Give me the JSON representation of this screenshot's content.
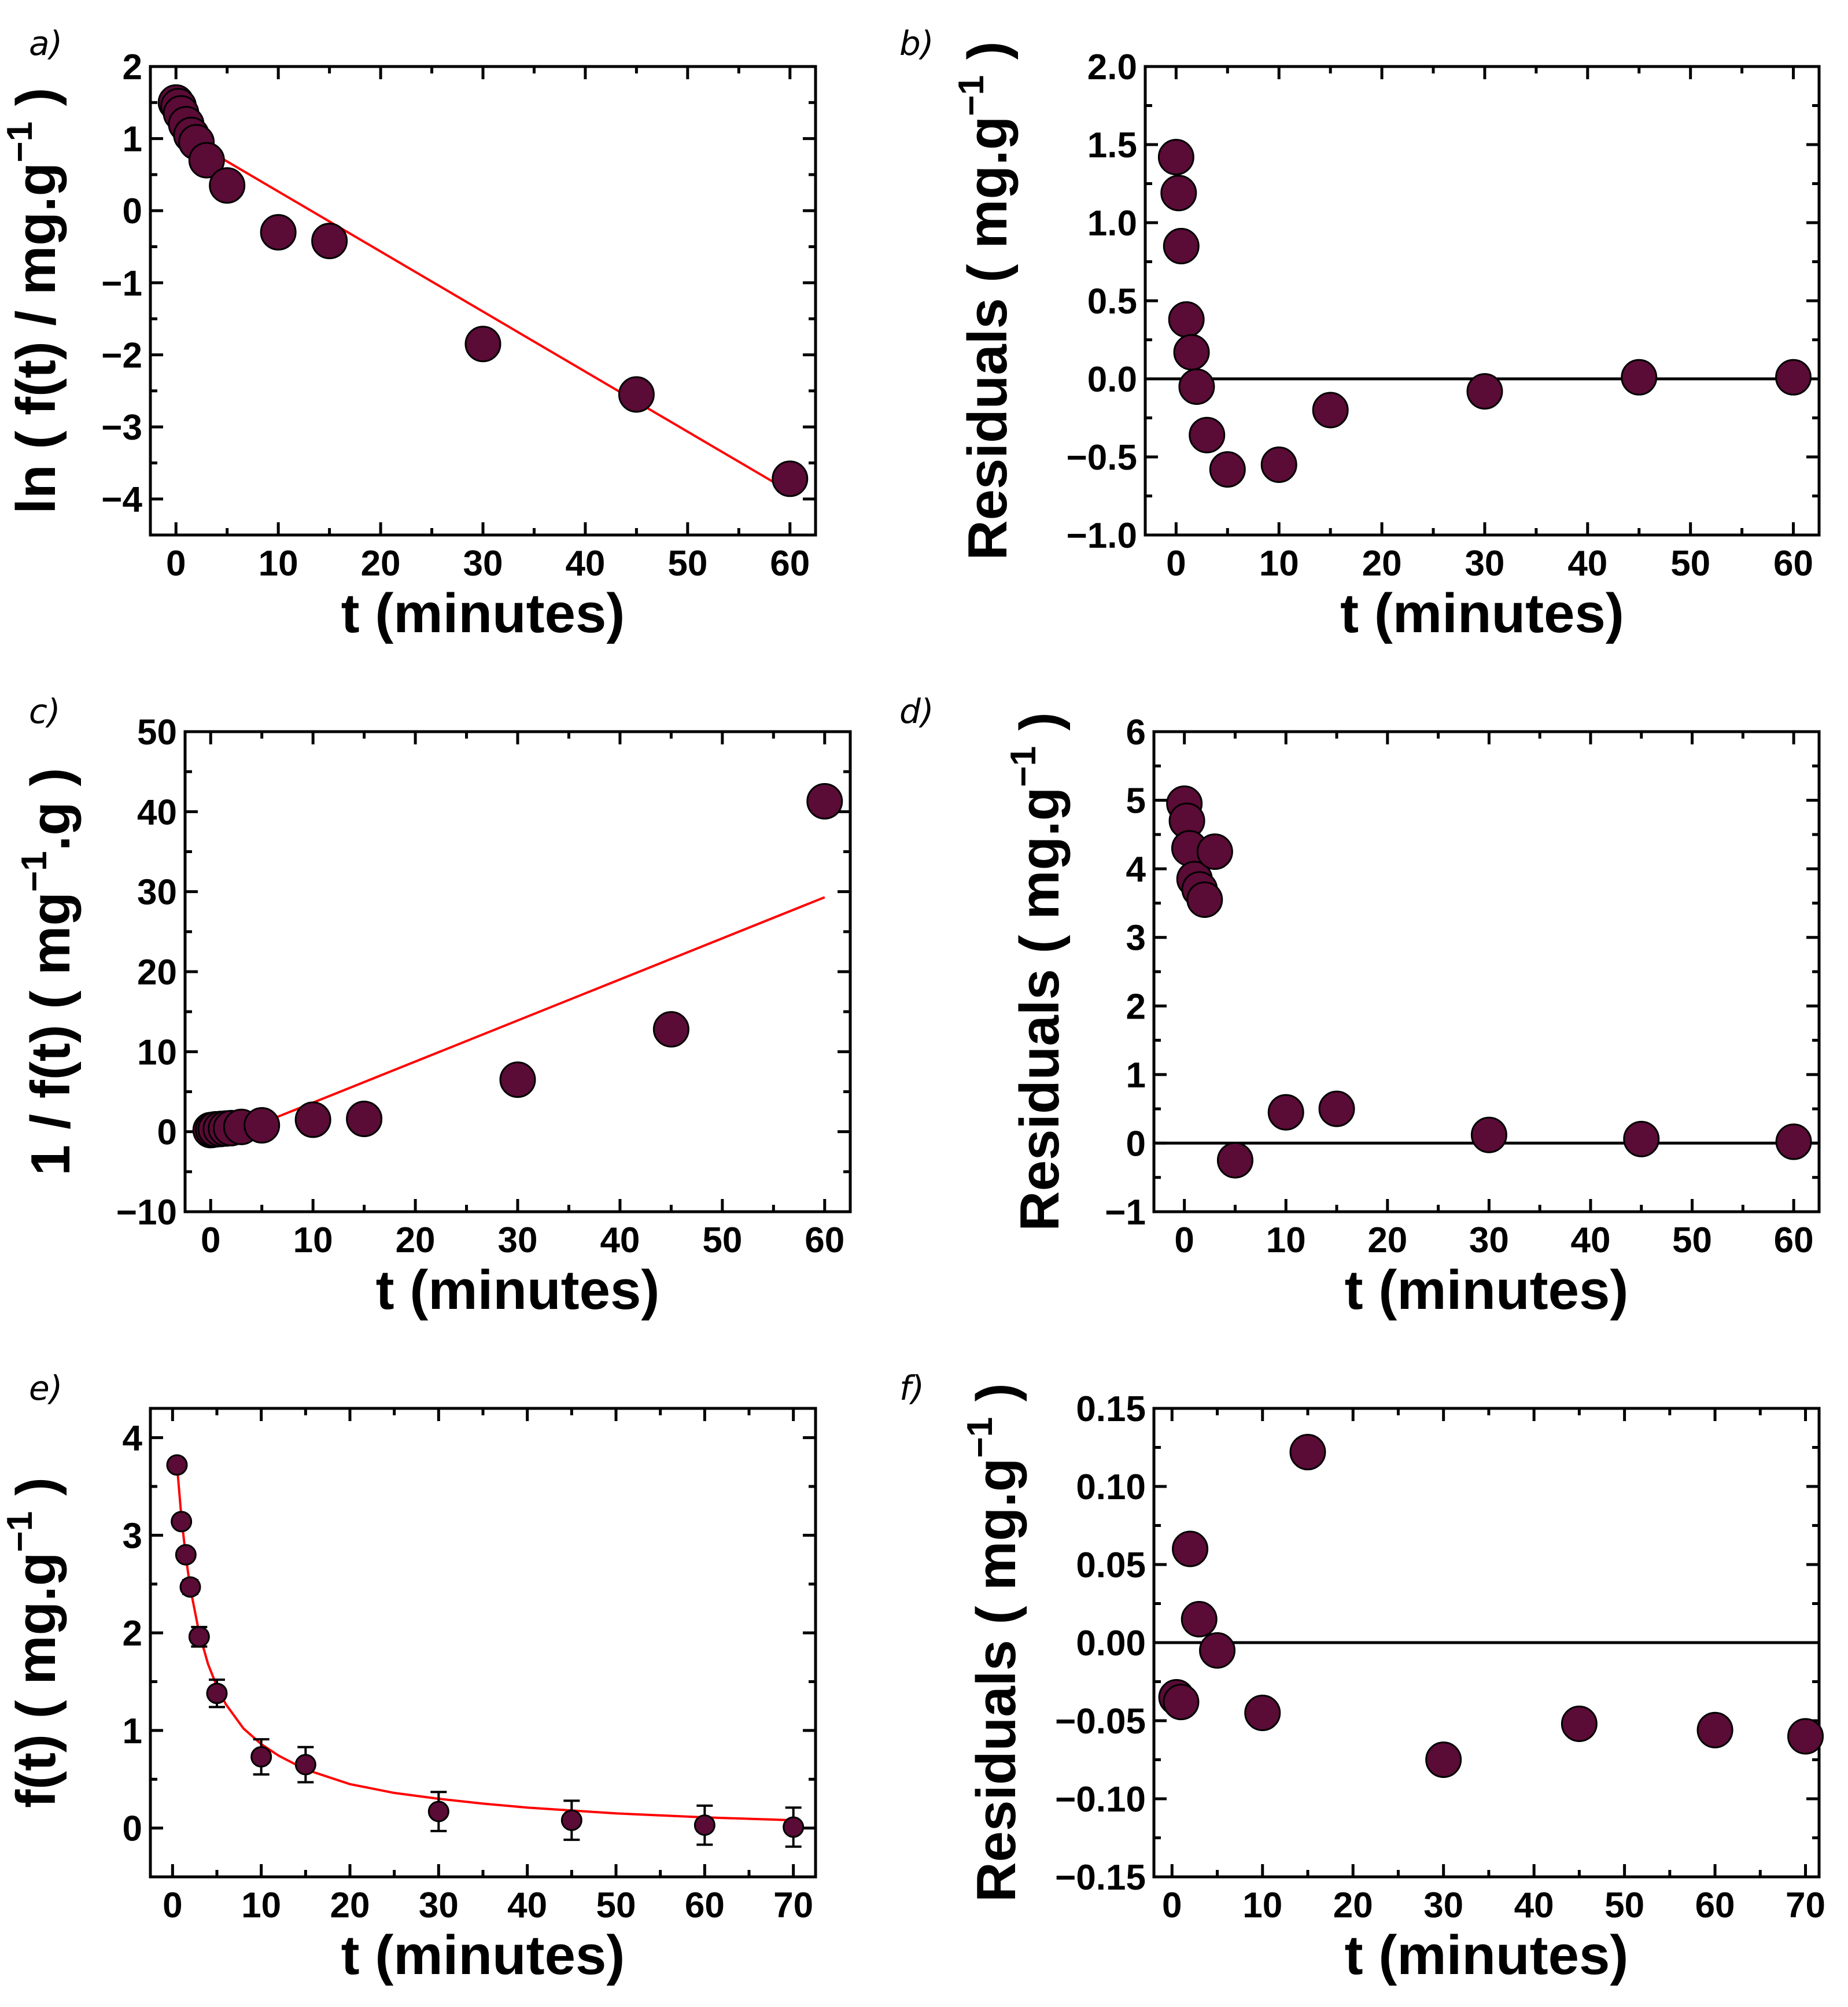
{
  "figure": {
    "title": ""
  },
  "chart_data": [
    {
      "id": "a",
      "panel_label": "a)",
      "type": "scatter",
      "xlabel": "t (minutes)",
      "ylabel": "ln ( f(t) / mg.g",
      "ylabel_sup": "−1",
      "ylabel_tail": " )",
      "xlim": [
        -2.5,
        62.5
      ],
      "ylim": [
        -4.5,
        2
      ],
      "xticks": [
        0,
        10,
        20,
        30,
        40,
        50,
        60
      ],
      "yticks": [
        -4,
        -3,
        -2,
        -1,
        0,
        1,
        2
      ],
      "ytick_labels": [
        "−4",
        "−3",
        "−2",
        "−1",
        "0",
        "1",
        "2"
      ],
      "marker_size": "large",
      "series": [
        {
          "name": "data",
          "x": [
            0,
            0.25,
            0.5,
            1,
            1.5,
            2,
            3,
            5,
            10,
            15,
            30,
            45,
            60
          ],
          "y": [
            1.5,
            1.45,
            1.35,
            1.2,
            1.05,
            0.95,
            0.7,
            0.35,
            -0.3,
            -0.42,
            -1.85,
            -2.55,
            -3.72
          ]
        }
      ],
      "fit": {
        "x": [
          0,
          60
        ],
        "y": [
          1.1,
          -3.9
        ]
      },
      "zero_line": false
    },
    {
      "id": "b",
      "panel_label": "b)",
      "type": "scatter",
      "xlabel": "t (minutes)",
      "ylabel": "Residuals ( mg.g",
      "ylabel_sup": "−1",
      "ylabel_tail": " )",
      "xlim": [
        -3,
        62.5
      ],
      "ylim": [
        -1.0,
        2.0
      ],
      "xticks": [
        0,
        10,
        20,
        30,
        40,
        50,
        60
      ],
      "yticks": [
        -1.0,
        -0.5,
        0.0,
        0.5,
        1.0,
        1.5,
        2.0
      ],
      "ytick_labels": [
        "−1.0",
        "−0.5",
        "0.0",
        "0.5",
        "1.0",
        "1.5",
        "2.0"
      ],
      "marker_size": "large",
      "series": [
        {
          "name": "residuals",
          "x": [
            0,
            0.25,
            0.5,
            1,
            1.5,
            2,
            3,
            5,
            10,
            15,
            30,
            45,
            60
          ],
          "y": [
            1.42,
            1.19,
            0.85,
            0.38,
            0.17,
            -0.05,
            -0.36,
            -0.58,
            -0.55,
            -0.2,
            -0.08,
            0.01,
            0.01
          ]
        }
      ],
      "zero_line": true
    },
    {
      "id": "c",
      "panel_label": "c)",
      "type": "scatter",
      "xlabel": "t (minutes)",
      "ylabel": "1 / f(t)  ( mg",
      "ylabel_sup": "−1",
      "ylabel_tail": ".g )",
      "xlim": [
        -2.5,
        62.5
      ],
      "ylim": [
        -10,
        50
      ],
      "xticks": [
        0,
        10,
        20,
        30,
        40,
        50,
        60
      ],
      "yticks": [
        -10,
        0,
        10,
        20,
        30,
        40,
        50
      ],
      "ytick_labels": [
        "−10",
        "0",
        "10",
        "20",
        "30",
        "40",
        "50"
      ],
      "marker_size": "large",
      "series": [
        {
          "name": "data",
          "x": [
            0,
            0.25,
            0.5,
            1,
            1.5,
            2,
            3,
            5,
            10,
            15,
            30,
            45,
            60
          ],
          "y": [
            0.2,
            0.25,
            0.3,
            0.35,
            0.4,
            0.45,
            0.6,
            0.8,
            1.5,
            1.6,
            6.5,
            12.8,
            41.3
          ]
        }
      ],
      "fit": {
        "x": [
          0,
          60
        ],
        "y": [
          -1.5,
          29.3
        ]
      },
      "zero_line": false
    },
    {
      "id": "d",
      "panel_label": "d)",
      "type": "scatter",
      "xlabel": "t (minutes)",
      "ylabel": "Residuals ( mg.g",
      "ylabel_sup": "−1",
      "ylabel_tail": " )",
      "xlim": [
        -3,
        62.5
      ],
      "ylim": [
        -1,
        6
      ],
      "xticks": [
        0,
        10,
        20,
        30,
        40,
        50,
        60
      ],
      "yticks": [
        -1,
        0,
        1,
        2,
        3,
        4,
        5,
        6
      ],
      "ytick_labels": [
        "−1",
        "0",
        "1",
        "2",
        "3",
        "4",
        "5",
        "6"
      ],
      "marker_size": "large",
      "series": [
        {
          "name": "residuals",
          "x": [
            0,
            0.25,
            0.5,
            1,
            1.5,
            2,
            3,
            5,
            10,
            15,
            30,
            45,
            60
          ],
          "y": [
            4.95,
            4.7,
            4.3,
            3.85,
            3.7,
            3.55,
            4.25,
            -0.25,
            0.45,
            0.5,
            0.12,
            0.06,
            0.02
          ]
        }
      ],
      "zero_line": true
    },
    {
      "id": "e",
      "panel_label": "e)",
      "type": "scatter",
      "xlabel": "t (minutes)",
      "ylabel": "f(t)  ( mg.g",
      "ylabel_sup": "−1",
      "ylabel_tail": " )",
      "xlim": [
        -2.5,
        72.5
      ],
      "ylim": [
        -0.5,
        4.3
      ],
      "xticks": [
        0,
        10,
        20,
        30,
        40,
        50,
        60,
        70
      ],
      "yticks": [
        0,
        1,
        2,
        3,
        4
      ],
      "ytick_labels": [
        "0",
        "1",
        "2",
        "3",
        "4"
      ],
      "marker_size": "small",
      "series": [
        {
          "name": "data",
          "x": [
            0.5,
            1,
            1.5,
            2,
            3,
            5,
            10,
            15,
            30,
            45,
            60,
            70
          ],
          "y": [
            3.72,
            3.14,
            2.8,
            2.47,
            1.96,
            1.38,
            0.73,
            0.65,
            0.17,
            0.08,
            0.03,
            0.01
          ],
          "err": [
            0.03,
            0.04,
            0.06,
            0.07,
            0.1,
            0.14,
            0.18,
            0.18,
            0.2,
            0.2,
            0.2,
            0.2
          ]
        }
      ],
      "fit": {
        "x": [
          0.5,
          1,
          1.5,
          2,
          3,
          4,
          5,
          6,
          8,
          10,
          12,
          15,
          20,
          25,
          30,
          35,
          40,
          45,
          50,
          55,
          60,
          65,
          70
        ],
        "y": [
          3.72,
          3.18,
          2.78,
          2.46,
          2.0,
          1.68,
          1.45,
          1.27,
          1.02,
          0.86,
          0.74,
          0.6,
          0.45,
          0.36,
          0.3,
          0.25,
          0.21,
          0.18,
          0.15,
          0.13,
          0.11,
          0.095,
          0.08
        ]
      },
      "zero_line": false
    },
    {
      "id": "f",
      "panel_label": "f)",
      "type": "scatter",
      "xlabel": "t (minutes)",
      "ylabel": "Residuals  ( mg.g",
      "ylabel_sup": "−1",
      "ylabel_tail": " )",
      "xlim": [
        -2,
        71.5
      ],
      "ylim": [
        -0.15,
        0.15
      ],
      "xticks": [
        0,
        10,
        20,
        30,
        40,
        50,
        60,
        70
      ],
      "yticks": [
        -0.15,
        -0.1,
        -0.05,
        0.0,
        0.05,
        0.1,
        0.15
      ],
      "ytick_labels": [
        "−0.15",
        "−0.10",
        "−0.05",
        "0.00",
        "0.05",
        "0.10",
        "0.15"
      ],
      "marker_size": "large",
      "series": [
        {
          "name": "residuals",
          "x": [
            0.5,
            1,
            2,
            3,
            5,
            10,
            15,
            30,
            45,
            60,
            70
          ],
          "y": [
            -0.035,
            -0.038,
            0.06,
            0.015,
            -0.005,
            -0.045,
            0.122,
            -0.075,
            -0.052,
            -0.056,
            -0.06
          ]
        }
      ],
      "zero_line": true
    }
  ]
}
